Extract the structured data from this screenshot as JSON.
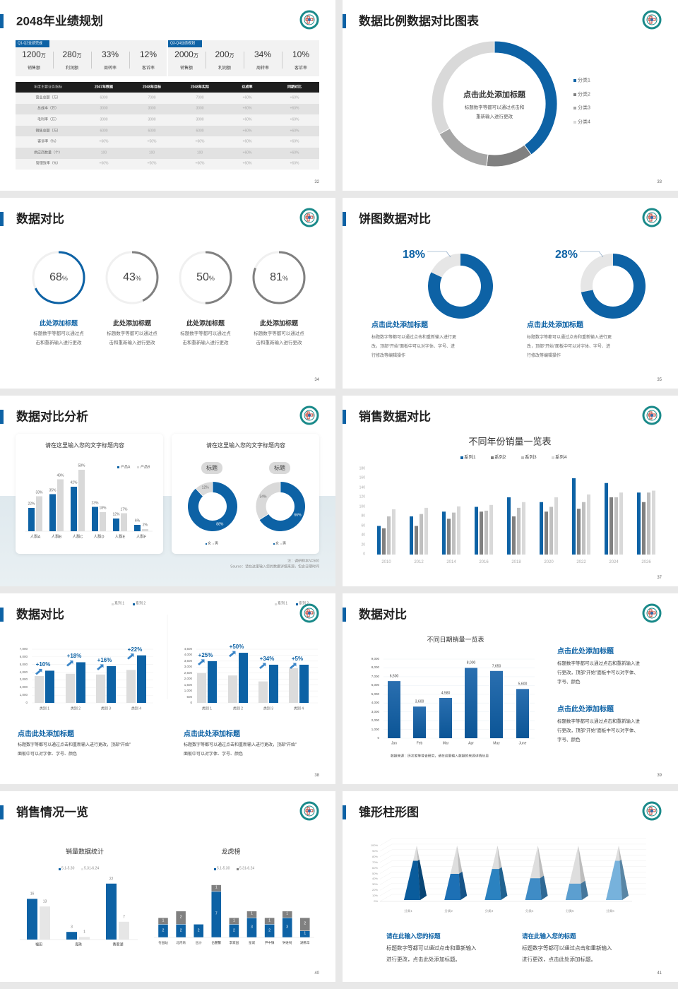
{
  "colors": {
    "blue": "#0d62a5",
    "gray": "#808080",
    "light": "#d9d9d9",
    "teal": "#1a8a8a"
  },
  "s32": {
    "title": "2048年业绩规划",
    "page": "32",
    "cards": [
      {
        "tag": "Q1-Q2业绩完成",
        "kpis": [
          {
            "v": "1200",
            "u": "万",
            "l": "销售额"
          },
          {
            "v": "280",
            "u": "万",
            "l": "利润额"
          },
          {
            "v": "33%",
            "u": "",
            "l": "周转率"
          },
          {
            "v": "12%",
            "u": "",
            "l": "客诉率"
          }
        ]
      },
      {
        "tag": "Q3-Q4业绩规划",
        "kpis": [
          {
            "v": "2000",
            "u": "万",
            "l": "销售额"
          },
          {
            "v": "200",
            "u": "万",
            "l": "利润额"
          },
          {
            "v": "34%",
            "u": "",
            "l": "周转率"
          },
          {
            "v": "10%",
            "u": "",
            "l": "客诉率"
          }
        ]
      }
    ],
    "table": {
      "headers": [
        "年度主要业务指标",
        "2047年数据",
        "2048年目标",
        "2048年实际",
        "达成率",
        "同期对比"
      ],
      "rows": [
        [
          "营业总额（万）",
          "6000",
          "7000",
          "7000",
          "+60%",
          "+60%"
        ],
        [
          "总成本（万）",
          "3000",
          "3000",
          "3000",
          "+60%",
          "+60%"
        ],
        [
          "毛利率（万）",
          "3000",
          "3000",
          "3000",
          "+60%",
          "+60%"
        ],
        [
          "销售总额（万）",
          "6000",
          "6000",
          "6000",
          "+60%",
          "+60%"
        ],
        [
          "客诉率（%）",
          "+60%",
          "+50%",
          "+60%",
          "+60%",
          "+60%"
        ],
        [
          "供应商数量（个）",
          "100",
          "100",
          "100",
          "+60%",
          "+60%"
        ],
        [
          "管理效率（%）",
          "+60%",
          "+50%",
          "+60%",
          "+60%",
          "+60%"
        ]
      ]
    }
  },
  "s33": {
    "title": "数据比例数据对比图表",
    "page": "33",
    "center_title": "点击此处添加标题",
    "center_desc": [
      "标题数字等都可以通过点击和",
      "重新输入进行更改"
    ],
    "chart_data": {
      "type": "pie",
      "donut": true,
      "categories": [
        "分类1",
        "分类2",
        "分类3",
        "分类4"
      ],
      "values": [
        40,
        12,
        15,
        33
      ],
      "colors": [
        "#0d62a5",
        "#808080",
        "#a6a6a6",
        "#d9d9d9"
      ],
      "legend": "right"
    }
  },
  "s34": {
    "title": "数据对比",
    "page": "34",
    "items": [
      {
        "value": 68,
        "num": "68",
        "unit": "%",
        "title": "此处添加标题",
        "desc": [
          "标题数字等都可以通过点",
          "击和重新输入进行更改"
        ],
        "color": "#0d62a5"
      },
      {
        "value": 43,
        "num": "43",
        "unit": "%",
        "title": "此处添加标题",
        "desc": [
          "标题数字等都可以通过点",
          "击和重新输入进行更改"
        ],
        "color": "#808080"
      },
      {
        "value": 50,
        "num": "50",
        "unit": "%",
        "title": "此处添加标题",
        "desc": [
          "标题数字等都可以通过点",
          "击和重新输入进行更改"
        ],
        "color": "#808080"
      },
      {
        "value": 81,
        "num": "81",
        "unit": "%",
        "title": "此处添加标题",
        "desc": [
          "标题数字等都可以通过点",
          "击和重新输入进行更改"
        ],
        "color": "#808080"
      }
    ]
  },
  "s35": {
    "title": "饼图数据对比",
    "page": "35",
    "items": [
      {
        "value": 18,
        "label": "18%",
        "title": "点击此处添加标题",
        "desc": [
          "标题数字等都可以通过点击和重新输入进行更",
          "改，顶部“开始”面板中可以对字体、字号、进",
          "行修改等编辑操作"
        ]
      },
      {
        "value": 28,
        "label": "28%",
        "title": "点击此处添加标题",
        "desc": [
          "标题数字等都可以通过点击和重新输入进行更",
          "改，顶部“开始”面板中可以对字体、字号、进",
          "行修改等编辑操作"
        ]
      }
    ]
  },
  "s36": {
    "title": "数据对比分析",
    "page": "36",
    "bar": {
      "title": "请在这里输入您的文字标题内容",
      "chart_data": {
        "type": "bar",
        "categories": [
          "人群A",
          "人群B",
          "人群C",
          "人群D",
          "人群E",
          "人群F"
        ],
        "series": [
          {
            "name": "产品A",
            "values": [
              22,
              35,
              42,
              23,
              12,
              6
            ],
            "labels": [
              "22%",
              "35%",
              "42%",
              "23%",
              "12%",
              "6%"
            ]
          },
          {
            "name": "产品B",
            "values": [
              33,
              49,
              58,
              18,
              17,
              2
            ],
            "labels": [
              "33%",
              "49%",
              "58%",
              "18%",
              "17%",
              "2%"
            ]
          }
        ]
      }
    },
    "donuts": {
      "title": "请在这里输入您的文字标题内容",
      "items": [
        {
          "pill": "标题",
          "chart_data": {
            "type": "pie",
            "donut": true,
            "values": [
              88,
              12
            ],
            "labels": [
              "88%",
              "12%"
            ]
          },
          "legend": [
            "女",
            "男"
          ]
        },
        {
          "pill": "标题",
          "chart_data": {
            "type": "pie",
            "donut": true,
            "values": [
              66,
              34
            ],
            "labels": [
              "66%",
              "34%"
            ]
          },
          "legend": [
            "女",
            "男"
          ]
        }
      ]
    },
    "note": "注：调研样本N=500",
    "source": "Source：请在这里输入您的数据详细来源，包含日期时间"
  },
  "s37": {
    "title": "销售数据对比",
    "page": "37",
    "chart_data": {
      "type": "bar",
      "title": "不同年份销量一览表",
      "ylim": [
        0,
        180
      ],
      "yticks": [
        "0",
        "20",
        "40",
        "60",
        "80",
        "100",
        "120",
        "140",
        "160",
        "180"
      ],
      "categories": [
        "2010",
        "2012",
        "2014",
        "2016",
        "2018",
        "2020",
        "2022",
        "2024",
        "2026"
      ],
      "series": [
        {
          "name": "系列1",
          "values": [
            60,
            80,
            90,
            100,
            120,
            110,
            160,
            150,
            130
          ]
        },
        {
          "name": "系列2",
          "values": [
            55,
            60,
            75,
            90,
            80,
            90,
            96,
            120,
            110
          ]
        },
        {
          "name": "系列3",
          "values": [
            80,
            85,
            88,
            92,
            98,
            100,
            110,
            120,
            130
          ]
        },
        {
          "name": "系列4",
          "values": [
            95,
            98,
            101,
            104,
            110,
            120,
            126,
            130,
            134
          ]
        }
      ],
      "colors": [
        "#0d62a5",
        "#808080",
        "#bfbfbf",
        "#d9d9d9"
      ],
      "legend": "top"
    }
  },
  "s38": {
    "title": "数据对比",
    "page": "38",
    "charts": [
      {
        "chart_data": {
          "type": "bar",
          "ylim": [
            0,
            7000
          ],
          "yticks": [
            "0",
            "1,000",
            "2,000",
            "3,000",
            "4,000",
            "5,000",
            "6,000",
            "7,000"
          ],
          "categories": [
            "类别 1",
            "类别 2",
            "类别 3",
            "类别 4"
          ],
          "series": [
            {
              "name": "系列 1",
              "values": [
                3500,
                3800,
                3700,
                4300
              ]
            },
            {
              "name": "系列 2",
              "values": [
                4200,
                5300,
                4800,
                6200
              ]
            }
          ],
          "annotations": [
            "+10%",
            "+18%",
            "+16%",
            "+22%"
          ]
        },
        "title": "点击此处添加标题",
        "desc": [
          "标题数字等都可以通过点击和重新输入进行更改，顶部“开始”",
          "面板中可以对字体、字号、颜色"
        ]
      },
      {
        "chart_data": {
          "type": "bar",
          "ylim": [
            0,
            4500
          ],
          "yticks": [
            "0",
            "500",
            "1,000",
            "1,500",
            "2,000",
            "2,500",
            "3,000",
            "3,500",
            "4,000",
            "4,500"
          ],
          "categories": [
            "类别 1",
            "类别 2",
            "类别 3",
            "类别 4"
          ],
          "series": [
            {
              "name": "系列 1",
              "values": [
                2500,
                2300,
                1800,
                2900
              ]
            },
            {
              "name": "系列 2",
              "values": [
                3500,
                4200,
                3200,
                3200
              ]
            }
          ],
          "annotations": [
            "+25%",
            "+50%",
            "+34%",
            "+5%"
          ]
        },
        "title": "点击此处添加标题",
        "desc": [
          "标题数字等都可以通过点击和重新输入进行更改，顶部“开始”",
          "面板中可以对字体、字号、颜色"
        ]
      }
    ]
  },
  "s39": {
    "title": "数据对比",
    "page": "39",
    "chart_data": {
      "type": "bar",
      "title": "不同日期销量一览表",
      "ylim": [
        0,
        9000
      ],
      "yticks": [
        "0",
        "1,000",
        "2,000",
        "3,000",
        "4,000",
        "5,000",
        "6,000",
        "7,000",
        "8,000",
        "9,000"
      ],
      "categories": [
        "Jan",
        "Feb",
        "Mar",
        "Apr",
        "May",
        "June"
      ],
      "values": [
        6500,
        3600,
        4580,
        8000,
        7650,
        5600
      ],
      "labels": [
        "6,500",
        "3,600",
        "4,580",
        "8,000",
        "7,650",
        "5,600"
      ]
    },
    "source": "数据来源：历次家等普查研究，请在这里输入数据的来源详情信息",
    "blocks": [
      {
        "title": "点击此处添加标题",
        "desc": [
          "标题数字等都可以通过点击和重新输入进",
          "行更改，顶部“开始”面板中可以对字体、",
          "字号、颜色"
        ]
      },
      {
        "title": "点击此处添加标题",
        "desc": [
          "标题数字等都可以通过点击和重新输入进",
          "行更改，顶部“开始”面板中可以对字体、",
          "字号、颜色"
        ]
      }
    ]
  },
  "s40": {
    "title": "销售情况一览",
    "page": "40",
    "left": {
      "title": "销量数据统计",
      "chart_data": {
        "type": "bar",
        "categories": [
          "福田",
          "海珠",
          "香蜜湖"
        ],
        "series": [
          {
            "name": "5.1-5.30",
            "values": [
              16,
              3,
              22
            ]
          },
          {
            "name": "5.31-6.24",
            "values": [
              13,
              1,
              7
            ]
          }
        ]
      }
    },
    "right": {
      "title": "龙虎榜",
      "chart_data": {
        "type": "bar",
        "stacked": true,
        "categories": [
          "竹园站",
          "北内商",
          "岳沙",
          "岳麓馨",
          "李家园",
          "星城",
          "尹中镇",
          "钟进祠",
          "湖佛华"
        ],
        "series": [
          {
            "name": "5.1-5.30",
            "values": [
              2,
              2,
              2,
              7,
              2,
              3,
              2,
              3,
              1
            ]
          },
          {
            "name": "5.31-6.24",
            "values": [
              1,
              2,
              0,
              1,
              1,
              1,
              1,
              1,
              2
            ]
          }
        ]
      }
    }
  },
  "s41": {
    "title": "锥形柱形图",
    "page": "41",
    "chart_data": {
      "type": "bar",
      "shape": "pyramid",
      "ylim": [
        0,
        100
      ],
      "yticks": [
        "0%",
        "10%",
        "20%",
        "30%",
        "40%",
        "50%",
        "60%",
        "70%",
        "80%",
        "90%",
        "100%"
      ],
      "categories": [
        "分类1",
        "分类2",
        "分类3",
        "分类4",
        "分类5",
        "分类6"
      ],
      "values": [
        72,
        48,
        57,
        40,
        30,
        72
      ],
      "colors": [
        "#0a5c9c",
        "#1d70b5",
        "#2b82c0",
        "#3f8cc6",
        "#5c9fd0",
        "#77b2dc"
      ]
    },
    "blocks": [
      {
        "title": "请在此输入您的标题",
        "desc": [
          "标题数字等都可以通过点击和重新输入",
          "进行更改，点击此处添加标题。"
        ]
      },
      {
        "title": "请在此输入您的标题",
        "desc": [
          "标题数字等都可以通过点击和重新输入",
          "进行更改，点击此处添加标题。"
        ]
      }
    ]
  }
}
